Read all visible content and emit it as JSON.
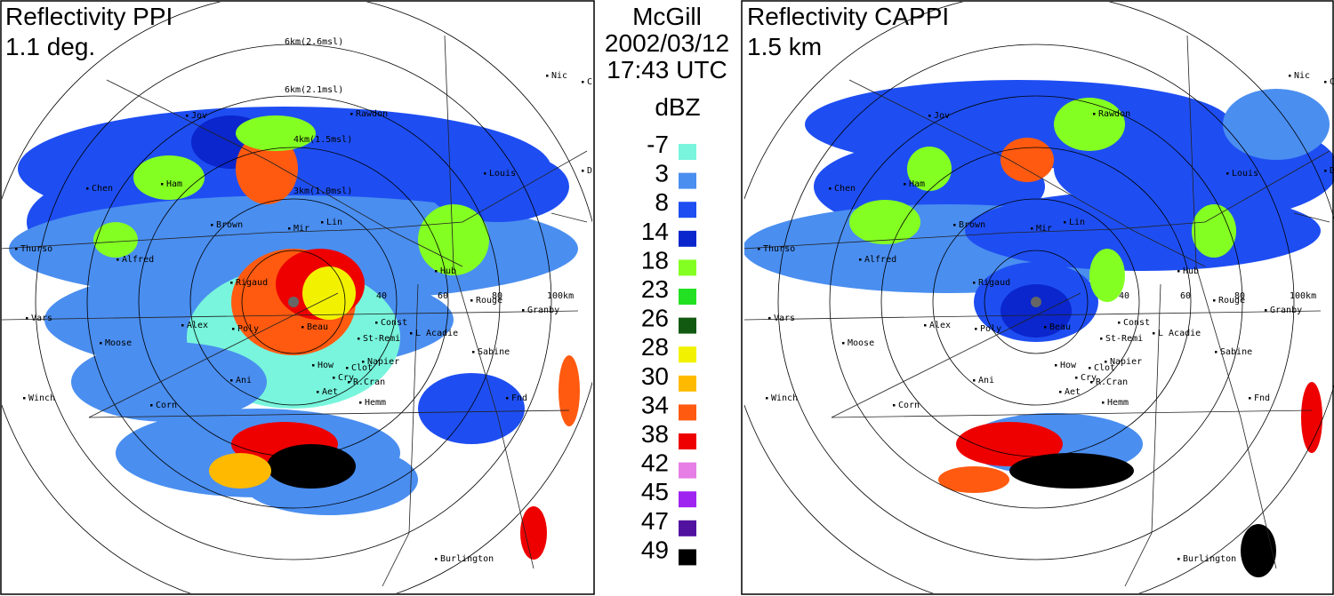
{
  "left_panel": {
    "title_line1": "Reflectivity PPI",
    "title_line2": "1.1 deg.",
    "height_labels": [
      "6km(2.6msl)",
      "6km(2.1msl)",
      "4km(1.5msl)",
      "3km(1.0msl)"
    ]
  },
  "right_panel": {
    "title_line1": "Reflectivity CAPPI",
    "title_line2": "1.5 km"
  },
  "center": {
    "radar": "McGill",
    "date": "2002/03/12",
    "time": "17:43 UTC",
    "unit": "dBZ"
  },
  "legend": [
    {
      "label": -7,
      "color": "#78f5dc"
    },
    {
      "label": 3,
      "color": "#4a8ef0"
    },
    {
      "label": 8,
      "color": "#1e4ef2"
    },
    {
      "label": 14,
      "color": "#0a26cc"
    },
    {
      "label": 18,
      "color": "#84ff22"
    },
    {
      "label": 23,
      "color": "#22e022"
    },
    {
      "label": 26,
      "color": "#125a12"
    },
    {
      "label": 28,
      "color": "#f2f200"
    },
    {
      "label": 30,
      "color": "#ffba00"
    },
    {
      "label": 34,
      "color": "#ff5a10"
    },
    {
      "label": 38,
      "color": "#ee0000"
    },
    {
      "label": 42,
      "color": "#e67ee6"
    },
    {
      "label": 45,
      "color": "#a024f0"
    },
    {
      "label": 47,
      "color": "#5212a0"
    },
    {
      "label": 49,
      "color": "#000000"
    }
  ],
  "map": {
    "range_labels": [
      "40",
      "60",
      "80",
      "100km"
    ],
    "places": [
      "Nic",
      "Co",
      "Jov",
      "Rawdon",
      "Dru",
      "Chen",
      "Ham",
      "Louis",
      "Thurso",
      "Alfred",
      "Brown",
      "Mir",
      "Lin",
      "Rigaud",
      "Hub",
      "Rouge",
      "Granby",
      "Vars",
      "Alex",
      "Moose",
      "Poly",
      "Beau",
      "Const",
      "St-Remi",
      "L Acadie",
      "Sabine",
      "How",
      "Napier",
      "Clot",
      "Cry",
      "R.Cran",
      "Winch",
      "Ani",
      "Hemm",
      "Aet",
      "Corn",
      "Fnd",
      "Burlington"
    ]
  }
}
